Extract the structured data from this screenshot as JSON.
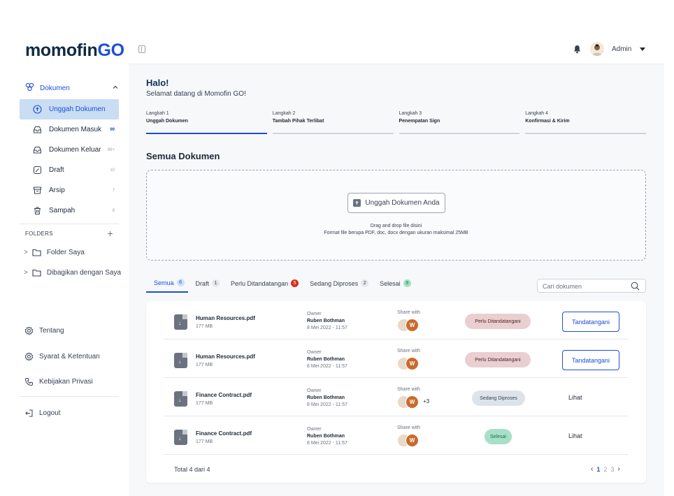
{
  "brand": {
    "name_main": "momofin",
    "name_go": "GO"
  },
  "sidebar": {
    "group_label": "Dokumen",
    "items": [
      {
        "label": "Unggah Dokumen",
        "count": "",
        "active": true,
        "icon": "upload-icon"
      },
      {
        "label": "Dokumen Masuk",
        "count": "99",
        "icon": "inbox-icon"
      },
      {
        "label": "Dokumen Keluar",
        "count": "99+",
        "icon": "outbox-icon"
      },
      {
        "label": "Draft",
        "count": "10",
        "icon": "draft-icon"
      },
      {
        "label": "Arsip",
        "count": "7",
        "icon": "archive-icon"
      },
      {
        "label": "Sampah",
        "count": "8",
        "icon": "trash-icon"
      }
    ],
    "folders_label": "FOLDERS",
    "folders": [
      {
        "label": "Folder Saya"
      },
      {
        "label": "Dibagikan dengan Saya"
      }
    ],
    "bottom": [
      {
        "label": "Tentang",
        "icon": "gear-icon"
      },
      {
        "label": "Syarat & Ketentuan",
        "icon": "gear-icon"
      },
      {
        "label": "Kebijakan Privasi",
        "icon": "phone-icon"
      },
      {
        "label": "Logout",
        "icon": "logout-icon"
      }
    ]
  },
  "topbar": {
    "user": "Admin"
  },
  "greeting": {
    "title": "Halo!",
    "subtitle": "Selamat datang di Momofin GO!"
  },
  "steps": [
    {
      "step": "Langkah 1",
      "title": "Unggah Dokumen",
      "active": true
    },
    {
      "step": "Langkah 2",
      "title": "Tambah Pihak Terlibat"
    },
    {
      "step": "Langkah 3",
      "title": "Penempatan Sign"
    },
    {
      "step": "Langkah 4",
      "title": "Konfirmasi & Kirim"
    }
  ],
  "section_title": "Semua Dokumen",
  "dropzone": {
    "button": "Unggah Dokumen Anda",
    "line1": "Drag and drop file disini",
    "line2": "Format file berupa PDF, doc, docx dengan ukuran maksimal 25MB"
  },
  "tabs": [
    {
      "label": "Semua",
      "count": "6"
    },
    {
      "label": "Draft",
      "count": "1"
    },
    {
      "label": "Perlu Ditandatangan",
      "count": "5"
    },
    {
      "label": "Sedang Diproses",
      "count": "2"
    },
    {
      "label": "Selesai",
      "count": "9"
    }
  ],
  "search": {
    "placeholder": "Cari dokumen"
  },
  "table": {
    "owner_label": "Owner",
    "share_label": "Share with",
    "rows": [
      {
        "file": "Human Resources.pdf",
        "size": "177 MB",
        "owner": "Ruben Bothman",
        "date": "8 Mei 2022 - 11:57",
        "avatar": "W",
        "more": "",
        "status": "Perlu Ditandatangani",
        "action": "Tandatangani"
      },
      {
        "file": "Human Resources.pdf",
        "size": "177 MB",
        "owner": "Ruben Bothman",
        "date": "8 Mei 2022 - 11:57",
        "avatar": "W",
        "more": "",
        "status": "Perlu Ditandatangani",
        "action": "Tandatangani"
      },
      {
        "file": "Finance Contract.pdf",
        "size": "177 MB",
        "owner": "Ruben Bothman",
        "date": "8 Mei 2022 - 11:57",
        "avatar": "W",
        "more": "+3",
        "status": "Sedang Diproses",
        "action": "Lihat"
      },
      {
        "file": "Finance Contract.pdf",
        "size": "177 MB",
        "owner": "Ruben Bothman",
        "date": "8 Mei 2022 - 11:57",
        "avatar": "W",
        "more": "",
        "status": "Selesai",
        "action": "Lihat"
      }
    ],
    "total": "Total 4 dari 4",
    "pages": [
      "1",
      "2",
      "3"
    ],
    "current_page": "1"
  }
}
